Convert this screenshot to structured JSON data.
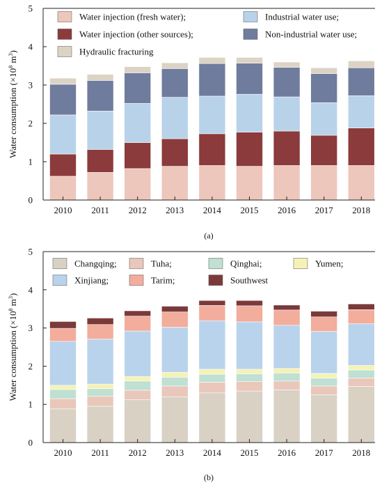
{
  "chart_data": [
    {
      "type": "bar",
      "stacked": true,
      "panel_label": "(a)",
      "ylabel": "Water consumption (×10⁸ m³)",
      "ylabel_parts": {
        "text": "Water consumption (×10",
        "exp1": "8",
        "mid": " m",
        "exp2": "3",
        "end": ")"
      },
      "ylim": [
        0,
        5
      ],
      "yticks": [
        0,
        1,
        2,
        3,
        4,
        5
      ],
      "categories": [
        "2010",
        "2011",
        "2012",
        "2013",
        "2014",
        "2015",
        "2016",
        "2017",
        "2018"
      ],
      "legend_position": "top",
      "grid": false,
      "series": [
        {
          "name": "Water injection (fresh water);",
          "color": "#edc6bc",
          "values": [
            0.62,
            0.72,
            0.82,
            0.88,
            0.9,
            0.88,
            0.9,
            0.9,
            0.9
          ]
        },
        {
          "name": "Water injection (other sources);",
          "color": "#8b3b3b",
          "values": [
            0.58,
            0.6,
            0.68,
            0.72,
            0.83,
            0.89,
            0.9,
            0.79,
            0.98
          ]
        },
        {
          "name": "Industrial water use;",
          "color": "#b8d2e9",
          "values": [
            1.02,
            1.0,
            1.02,
            1.08,
            0.98,
            0.99,
            0.89,
            0.85,
            0.84
          ]
        },
        {
          "name": "Non-industrial water use;",
          "color": "#6f7c9d",
          "values": [
            0.8,
            0.8,
            0.8,
            0.75,
            0.85,
            0.81,
            0.77,
            0.76,
            0.73
          ]
        },
        {
          "name": "Hydraulic fracturing",
          "color": "#dcd3c4",
          "values": [
            0.16,
            0.16,
            0.16,
            0.15,
            0.16,
            0.15,
            0.14,
            0.15,
            0.18
          ]
        }
      ],
      "legend_order": [
        0,
        2,
        1,
        3,
        4
      ]
    },
    {
      "type": "bar",
      "stacked": true,
      "panel_label": "(b)",
      "ylabel": "Water consumption (×10⁸ m³)",
      "ylabel_parts": {
        "text": "Water consumption (×10",
        "exp1": "8",
        "mid": " m",
        "exp2": "3",
        "end": ")"
      },
      "ylim": [
        0,
        5
      ],
      "yticks": [
        0,
        1,
        2,
        3,
        4,
        5
      ],
      "categories": [
        "2010",
        "2011",
        "2012",
        "2013",
        "2014",
        "2015",
        "2016",
        "2017",
        "2018"
      ],
      "legend_position": "top",
      "grid": false,
      "series": [
        {
          "name": "Changqing;",
          "color": "#d8d1c4",
          "values": [
            0.88,
            0.95,
            1.12,
            1.2,
            1.3,
            1.35,
            1.38,
            1.25,
            1.47
          ]
        },
        {
          "name": "Tuha;",
          "color": "#eac7bb",
          "values": [
            0.27,
            0.26,
            0.25,
            0.28,
            0.28,
            0.25,
            0.23,
            0.23,
            0.22
          ]
        },
        {
          "name": "Qinghai;",
          "color": "#bfe0d2",
          "values": [
            0.24,
            0.2,
            0.24,
            0.23,
            0.21,
            0.2,
            0.21,
            0.21,
            0.21
          ]
        },
        {
          "name": "Yumen;",
          "color": "#f6f2b5",
          "values": [
            0.11,
            0.12,
            0.12,
            0.13,
            0.13,
            0.12,
            0.12,
            0.12,
            0.12
          ]
        },
        {
          "name": "Xinjiang;",
          "color": "#b9d3ec",
          "values": [
            1.15,
            1.18,
            1.19,
            1.18,
            1.27,
            1.24,
            1.13,
            1.1,
            1.09
          ]
        },
        {
          "name": "Tarim;",
          "color": "#f2ad9c",
          "values": [
            0.34,
            0.38,
            0.39,
            0.4,
            0.4,
            0.42,
            0.4,
            0.38,
            0.37
          ]
        },
        {
          "name": "Southwest",
          "color": "#7b3a3a",
          "values": [
            0.18,
            0.17,
            0.14,
            0.15,
            0.13,
            0.14,
            0.13,
            0.15,
            0.15
          ]
        }
      ],
      "legend_order": [
        0,
        1,
        2,
        3,
        4,
        5,
        6
      ]
    }
  ]
}
